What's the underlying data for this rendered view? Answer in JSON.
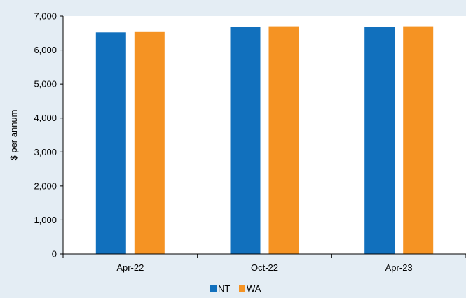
{
  "chart_data": {
    "type": "bar",
    "title": "",
    "xlabel": "",
    "ylabel": "$ per annum",
    "categories": [
      "Apr-22",
      "Oct-22",
      "Apr-23"
    ],
    "series": [
      {
        "name": "NT",
        "values": [
          6520,
          6680,
          6680
        ],
        "color": "#1170bd"
      },
      {
        "name": "WA",
        "values": [
          6530,
          6700,
          6700
        ],
        "color": "#f59323"
      }
    ],
    "ylim": [
      0,
      7000
    ],
    "yticks": [
      0,
      1000,
      2000,
      3000,
      4000,
      5000,
      6000,
      7000
    ],
    "ytick_labels": [
      "0",
      "1,000",
      "2,000",
      "3,000",
      "4,000",
      "5,000",
      "6,000",
      "7,000"
    ],
    "grid": false,
    "legend_position": "bottom",
    "plot_background": "#ffffff",
    "page_background": "#e4edf4"
  }
}
